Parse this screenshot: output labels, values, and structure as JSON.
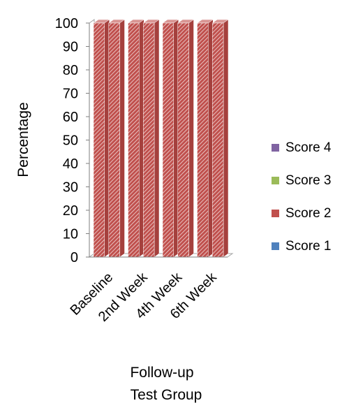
{
  "chart_data": {
    "type": "bar",
    "stacked": true,
    "categories": [
      "Baseline",
      "2nd Week",
      "4th Week",
      "6th Week"
    ],
    "series": [
      {
        "name": "Score 1",
        "color": "#4f81bd",
        "values": [
          0,
          0,
          0,
          0
        ]
      },
      {
        "name": "Score 2",
        "color": "#c0504d",
        "values": [
          100,
          100,
          100,
          100
        ]
      },
      {
        "name": "Score 3",
        "color": "#9bbb59",
        "values": [
          0,
          0,
          0,
          0
        ]
      },
      {
        "name": "Score 4",
        "color": "#8064a2",
        "values": [
          0,
          0,
          0,
          0
        ]
      }
    ],
    "ylabel": "Percentage",
    "xlabel": "Follow-up",
    "group_label": "Test Group",
    "ylim": [
      0,
      100
    ],
    "yticks": [
      0,
      10,
      20,
      30,
      40,
      50,
      60,
      70,
      80,
      90,
      100
    ],
    "grid": false,
    "legend_position": "right"
  }
}
